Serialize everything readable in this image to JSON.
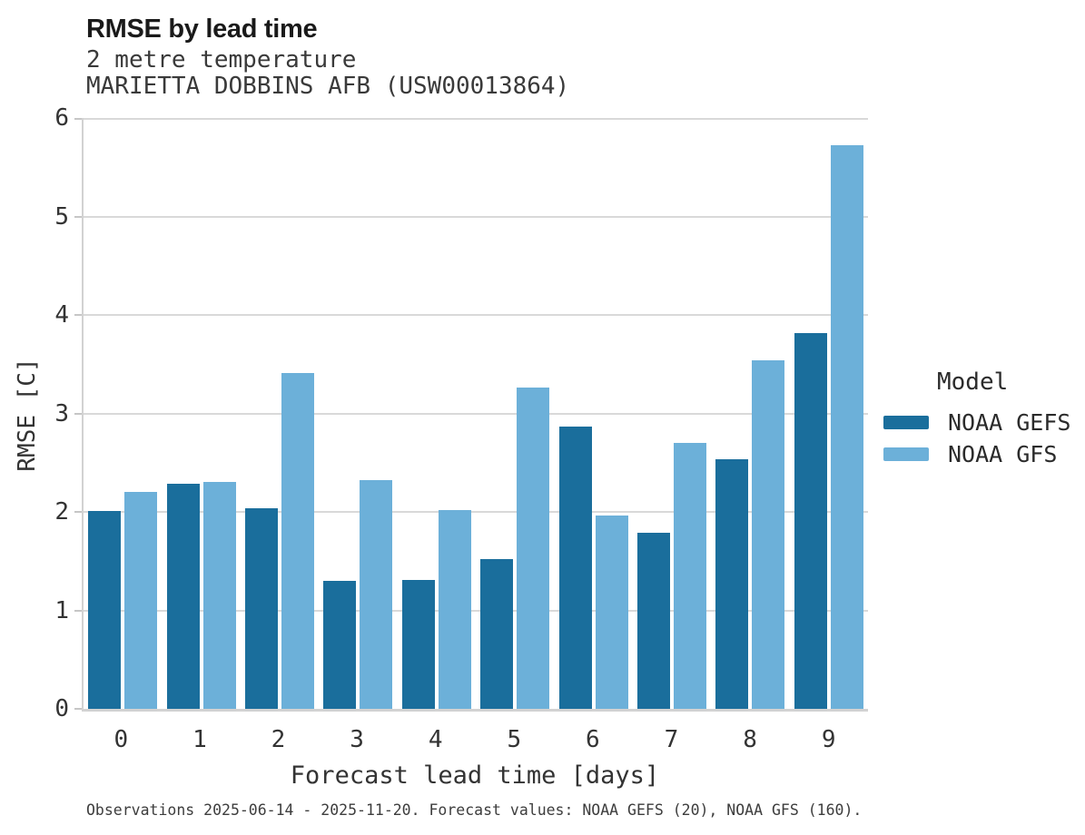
{
  "title": "RMSE by lead time",
  "subtitle_line1": "2 metre temperature",
  "subtitle_line2": "MARIETTA DOBBINS AFB (USW00013864)",
  "caption": "Observations 2025-06-14 - 2025-11-20. Forecast values: NOAA GEFS (20), NOAA GFS (160).",
  "legend": {
    "title": "Model"
  },
  "colors": {
    "noaa_gefs": "#1a6e9c",
    "noaa_gfs": "#6cb0d9",
    "gridline": "#d9d9d9",
    "axis_line": "#d2d2d2"
  },
  "chart_data": {
    "type": "bar",
    "title": "RMSE by lead time",
    "subtitle": [
      "2 metre temperature",
      "MARIETTA DOBBINS AFB (USW00013864)"
    ],
    "categories": [
      "0",
      "1",
      "2",
      "3",
      "4",
      "5",
      "6",
      "7",
      "8",
      "9"
    ],
    "series": [
      {
        "name": "NOAA GEFS",
        "color": "#1a6e9c",
        "values": [
          2.01,
          2.29,
          2.04,
          1.3,
          1.31,
          1.52,
          2.87,
          1.79,
          2.53,
          3.82
        ]
      },
      {
        "name": "NOAA GFS",
        "color": "#6cb0d9",
        "values": [
          2.2,
          2.3,
          3.41,
          2.32,
          2.02,
          3.26,
          1.96,
          2.7,
          3.54,
          5.72
        ]
      }
    ],
    "xlabel": "Forecast lead time [days]",
    "ylabel": "RMSE [C]",
    "ylim": [
      0,
      6
    ],
    "yticks": [
      0,
      1,
      2,
      3,
      4,
      5,
      6
    ],
    "grid": true,
    "legend_title": "Model",
    "legend_position": "right",
    "caption": "Observations 2025-06-14 - 2025-11-20. Forecast values: NOAA GEFS (20), NOAA GFS (160)."
  }
}
